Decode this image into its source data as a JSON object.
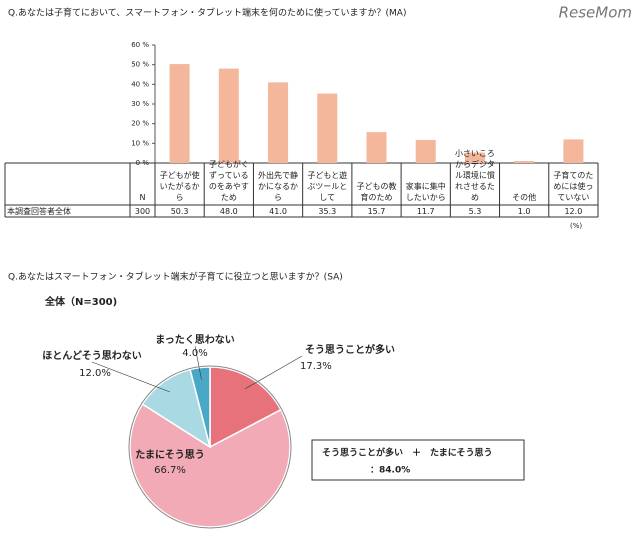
{
  "watermark": "ReseMom",
  "chart_data": [
    {
      "type": "bar",
      "title": "Q.あなたは子育てにおいて、スマートフォン・タブレット端末を何のために使っていますか？(MA)",
      "categories": [
        "子どもが使いたがるから",
        "子どもがぐずっているのをあやすため",
        "外出先で静かになるから",
        "子どもと遊ぶツールとして",
        "子どもの教育のため",
        "家事に集中したいから",
        "小さいころからデジタル環境に慣れさせるため",
        "その他",
        "子育てのためには使っていない"
      ],
      "values": [
        50.3,
        48.0,
        41.0,
        35.3,
        15.7,
        11.7,
        5.3,
        1.0,
        12.0
      ],
      "value_labels": [
        "50.3",
        "48.0",
        "41.0",
        "35.3",
        "15.7",
        "11.7",
        "5.3",
        "1.0",
        "12.0"
      ],
      "color": "#f4b79b",
      "ylim": [
        0,
        60
      ],
      "yticks": [
        {
          "value": 0,
          "label": "0 %"
        },
        {
          "value": 10,
          "label": "10 %"
        },
        {
          "value": 20,
          "label": "20 %"
        },
        {
          "value": 30,
          "label": "30 %"
        },
        {
          "value": 40,
          "label": "40 %"
        },
        {
          "value": 50,
          "label": "50 %"
        },
        {
          "value": 60,
          "label": "60 %"
        }
      ],
      "grid": false,
      "table": {
        "row_label": "本調査回答者全体",
        "n_header": "N",
        "n_value": "300",
        "unit_note": "(%)"
      }
    },
    {
      "type": "pie",
      "title": "Q.あなたはスマートフォン・タブレット端末が子育てに役立つと思いますか？(SA)",
      "subtitle": "全体（N=300)",
      "categories": [
        "そう思うことが多い",
        "たまにそう思う",
        "ほとんどそう思わない",
        "まったく思わない"
      ],
      "values": [
        17.3,
        66.7,
        12.0,
        4.0
      ],
      "value_labels": [
        "17.3%",
        "66.7%",
        "12.0%",
        "4.0%"
      ],
      "colors": [
        "#e8727c",
        "#f2aab6",
        "#a9d9e2",
        "#4ba7c6"
      ],
      "annotation": {
        "line1": "そう思うことが多い　＋　たまにそう思う",
        "line2": "：84.0%"
      }
    }
  ]
}
